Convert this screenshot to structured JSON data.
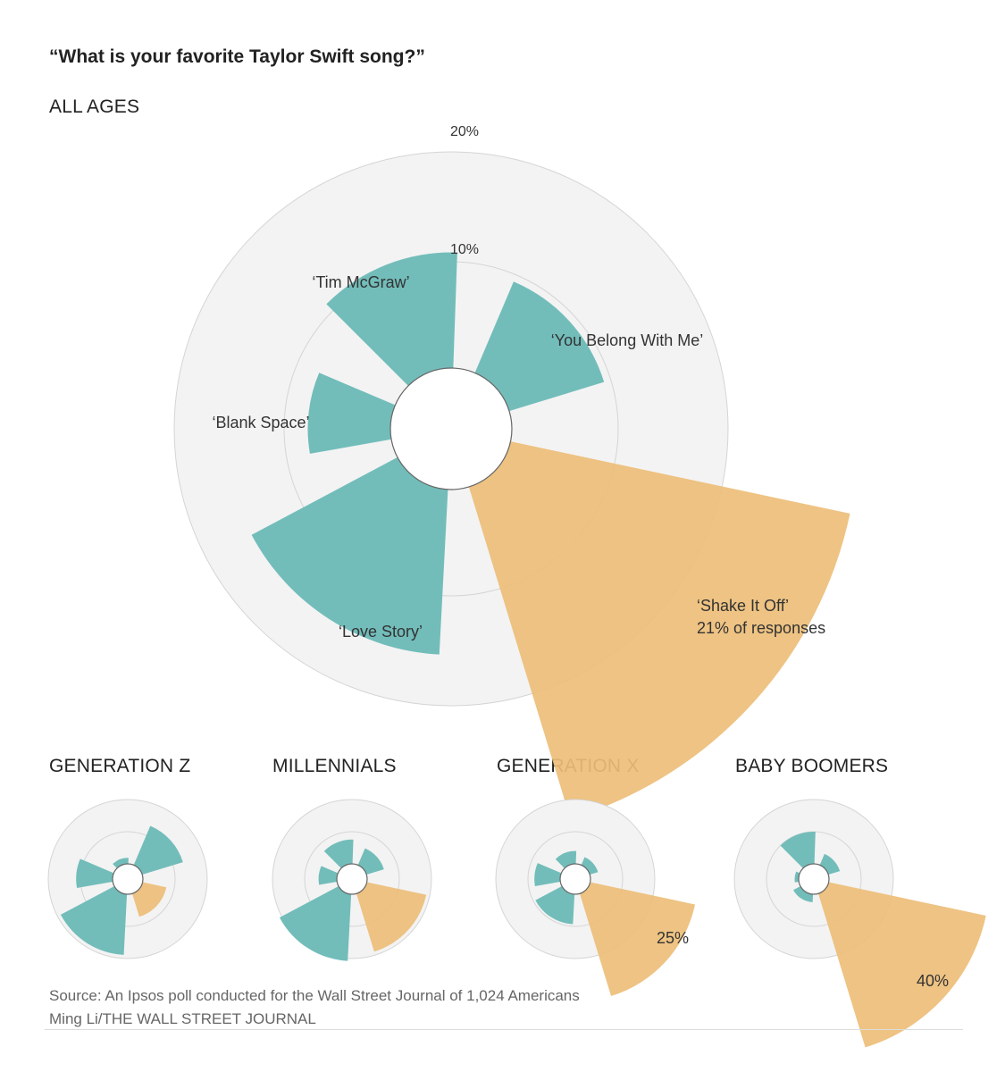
{
  "title": "“What is your favorite Taylor Swift song?”",
  "colors": {
    "highlight": "#EDBE78",
    "base": "#72BDBA",
    "ring_fill": "#F3F3F3",
    "ring_stroke": "#D5D5D5"
  },
  "source": "Source: An Ipsos poll conducted for the Wall Street Journal of 1,024 Americans",
  "credit": "Ming Li/THE WALL STREET JOURNAL",
  "chart_data": [
    {
      "type": "polar-bar",
      "title": "ALL AGES",
      "rlim": [
        0,
        20
      ],
      "gridlines": [
        10,
        20
      ],
      "grid_labels": [
        "10%",
        "20%"
      ],
      "categories": [
        "‘Shake It Off’",
        "‘Love Story’",
        "‘Blank Space’",
        "‘Tim McGraw’",
        "‘You Belong With Me’"
      ],
      "values": [
        21,
        10,
        5,
        7,
        6
      ],
      "highlight": "‘Shake It Off’",
      "annotation": "21% of responses"
    },
    {
      "type": "polar-bar",
      "title": "GENERATION Z",
      "rlim": [
        0,
        20
      ],
      "categories": [
        "‘Shake It Off’",
        "‘Love Story’",
        "‘Blank Space’",
        "‘Tim McGraw’",
        "‘You Belong With Me’"
      ],
      "values": [
        4,
        10,
        6,
        1,
        7
      ],
      "highlight": "‘Shake It Off’"
    },
    {
      "type": "polar-bar",
      "title": "MILLENNIALS",
      "rlim": [
        0,
        20
      ],
      "categories": [
        "‘Shake It Off’",
        "‘Love Story’",
        "‘Blank Space’",
        "‘Tim McGraw’",
        "‘You Belong With Me’"
      ],
      "values": [
        10,
        11,
        3,
        4,
        3
      ],
      "highlight": "‘Shake It Off’"
    },
    {
      "type": "polar-bar",
      "title": "GENERATION X",
      "rlim": [
        0,
        20
      ],
      "categories": [
        "‘Shake It Off’",
        "‘Love Story’",
        "‘Blank Space’",
        "‘Tim McGraw’",
        "‘You Belong With Me’"
      ],
      "values": [
        25,
        7,
        6,
        3,
        2
      ],
      "highlight": "‘Shake It Off’",
      "annotation": "25%"
    },
    {
      "type": "polar-bar",
      "title": "BABY BOOMERS",
      "rlim": [
        0,
        20
      ],
      "categories": [
        "‘Shake It Off’",
        "‘Love Story’",
        "‘Blank Space’",
        "‘Tim McGraw’",
        "‘You Belong With Me’"
      ],
      "values": [
        40,
        2,
        1,
        8,
        3
      ],
      "highlight": "‘Shake It Off’",
      "annotation": "40%"
    }
  ]
}
